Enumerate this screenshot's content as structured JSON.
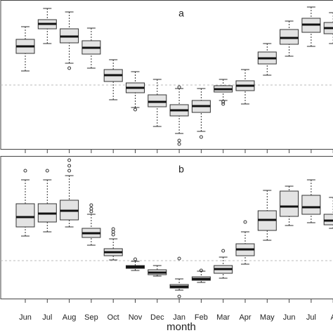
{
  "chart_data": [
    {
      "type": "box",
      "title": "a",
      "ylim": [
        0,
        106
      ],
      "hline": 45.5,
      "boxes": [
        {
          "whislo": 55.5,
          "q1": 68,
          "med": 73,
          "q3": 78,
          "whishi": 87,
          "fliers": []
        },
        {
          "whislo": 75,
          "q1": 85.5,
          "med": 89,
          "q3": 92,
          "whishi": 100,
          "fliers": []
        },
        {
          "whislo": 61,
          "q1": 75.5,
          "med": 80,
          "q3": 85.5,
          "whishi": 97.5,
          "fliers": [
            57.5
          ]
        },
        {
          "whislo": 57.5,
          "q1": 67.5,
          "med": 72,
          "q3": 77,
          "whishi": 86,
          "fliers": []
        },
        {
          "whislo": 35,
          "q1": 48,
          "med": 52.5,
          "q3": 56.5,
          "whishi": 63.5,
          "fliers": []
        },
        {
          "whislo": 29.5,
          "q1": 40,
          "med": 43.5,
          "q3": 47,
          "whishi": 55,
          "fliers": [
            28
          ]
        },
        {
          "whislo": 16,
          "q1": 30,
          "med": 33.5,
          "q3": 38.5,
          "whishi": 49.5,
          "fliers": []
        },
        {
          "whislo": 11,
          "q1": 23.5,
          "med": 27.5,
          "q3": 31.5,
          "whishi": 43,
          "fliers": [
            6,
            3.5,
            44
          ]
        },
        {
          "whislo": 12.5,
          "q1": 26,
          "med": 30.5,
          "q3": 34.5,
          "whishi": 43,
          "fliers": [
            8.5
          ]
        },
        {
          "whislo": 34.5,
          "q1": 40.5,
          "med": 42.5,
          "q3": 45,
          "whishi": 49.5,
          "fliers": [
            33.5,
            32
          ]
        },
        {
          "whislo": 32,
          "q1": 41.5,
          "med": 45,
          "q3": 48.5,
          "whishi": 56.5,
          "fliers": []
        },
        {
          "whislo": 52.5,
          "q1": 60.5,
          "med": 64.5,
          "q3": 69,
          "whishi": 75,
          "fliers": []
        },
        {
          "whislo": 66,
          "q1": 74.5,
          "med": 79,
          "q3": 85,
          "whishi": 91,
          "fliers": []
        },
        {
          "whislo": 73,
          "q1": 83,
          "med": 88.5,
          "q3": 93,
          "whishi": 101,
          "fliers": []
        },
        {
          "whislo": 75,
          "q1": 82,
          "med": 86,
          "q3": 90,
          "whishi": 97,
          "fliers": []
        }
      ]
    },
    {
      "type": "box",
      "title": "b",
      "ylim": [
        0,
        101.5
      ],
      "hline": 27,
      "xlabel": "month",
      "categories": [
        "Jun",
        "Jul",
        "Aug",
        "Sep",
        "Oct",
        "Nov",
        "Dec",
        "Jan",
        "Feb",
        "Mar",
        "Apr",
        "May",
        "Jun",
        "Jul",
        "A"
      ],
      "boxes": [
        {
          "whislo": 44.5,
          "q1": 51,
          "med": 58,
          "q3": 67.5,
          "whishi": 84.5,
          "fliers": [
            91
          ]
        },
        {
          "whislo": 47.5,
          "q1": 54.5,
          "med": 60.5,
          "q3": 67.5,
          "whishi": 84.5,
          "fliers": [
            91
          ]
        },
        {
          "whislo": 51,
          "q1": 56,
          "med": 62.5,
          "q3": 70,
          "whishi": 87.5,
          "fliers": [
            91,
            94.5,
            98.5
          ]
        },
        {
          "whislo": 38,
          "q1": 43.5,
          "med": 46.5,
          "q3": 50,
          "whishi": 60,
          "fliers": [
            66.5,
            64,
            62
          ]
        },
        {
          "whislo": 27.5,
          "q1": 30.5,
          "med": 33,
          "q3": 35.5,
          "whishi": 42.5,
          "fliers": [
            49.5,
            47.5,
            45.5
          ]
        },
        {
          "whislo": 20,
          "q1": 21.5,
          "med": 22.5,
          "q3": 23.5,
          "whishi": 26.5,
          "fliers": [
            28
          ]
        },
        {
          "whislo": 16,
          "q1": 17,
          "med": 18.5,
          "q3": 20.5,
          "whishi": 23.5,
          "fliers": []
        },
        {
          "whislo": 6,
          "q1": 7.5,
          "med": 8.5,
          "q3": 10,
          "whishi": 14,
          "fliers": [
            1.5,
            28.5
          ]
        },
        {
          "whislo": 11.5,
          "q1": 13,
          "med": 14,
          "q3": 15.5,
          "whishi": 19.5,
          "fliers": [
            20
          ]
        },
        {
          "whislo": 14.5,
          "q1": 18,
          "med": 21,
          "q3": 23.5,
          "whishi": 29.5,
          "fliers": [
            34
          ]
        },
        {
          "whislo": 24.5,
          "q1": 30.5,
          "med": 35,
          "q3": 39,
          "whishi": 47.5,
          "fliers": [
            54.5
          ]
        },
        {
          "whislo": 41.5,
          "q1": 48.5,
          "med": 56,
          "q3": 62.5,
          "whishi": 77,
          "fliers": []
        },
        {
          "whislo": 52,
          "q1": 58.5,
          "med": 65.5,
          "q3": 76.5,
          "whishi": 80,
          "fliers": []
        },
        {
          "whislo": 54,
          "q1": 60,
          "med": 65,
          "q3": 73.5,
          "whishi": 84.5,
          "fliers": []
        },
        {
          "whislo": 50,
          "q1": 52.5,
          "med": 55.5,
          "q3": 60,
          "whishi": 72,
          "fliers": []
        }
      ]
    }
  ]
}
